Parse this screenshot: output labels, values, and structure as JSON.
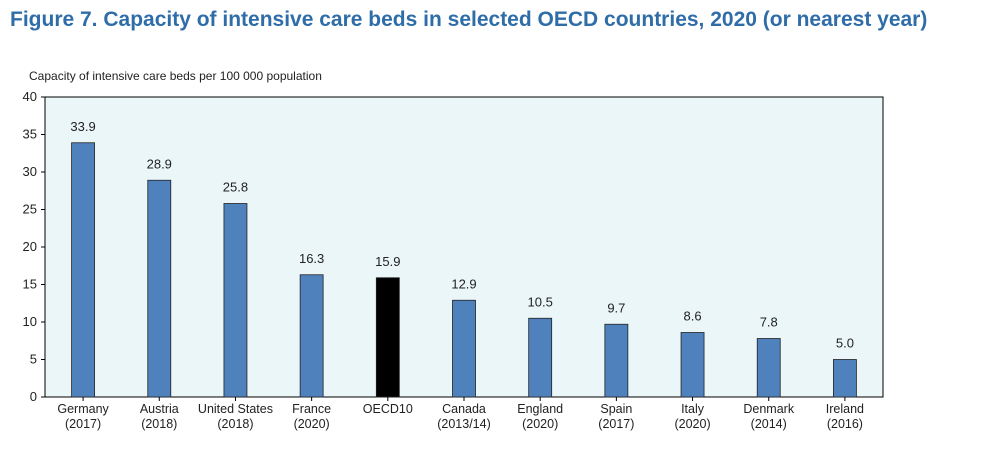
{
  "title": "Figure 7. Capacity of intensive care beds in selected OECD countries, 2020 (or nearest year)",
  "colors": {
    "title": "#2f6da8",
    "plot_background": "#eaf6f8",
    "bar": "#4f81bd",
    "highlight_bar": "#000000"
  },
  "chart_data": {
    "type": "bar",
    "ylabel": "Capacity of intensive care beds per 100 000 population",
    "xlabel": "",
    "ylim": [
      0,
      40
    ],
    "yticks": [
      0,
      5,
      10,
      15,
      20,
      25,
      30,
      35,
      40
    ],
    "grid": false,
    "categories": [
      {
        "name": "Germany",
        "year": "(2017)"
      },
      {
        "name": "Austria",
        "year": "(2018)"
      },
      {
        "name": "United States",
        "year": "(2018)"
      },
      {
        "name": "France",
        "year": "(2020)"
      },
      {
        "name": "OECD10",
        "year": ""
      },
      {
        "name": "Canada",
        "year": "(2013/14)"
      },
      {
        "name": "England",
        "year": "(2020)"
      },
      {
        "name": "Spain",
        "year": "(2017)"
      },
      {
        "name": "Italy",
        "year": "(2020)"
      },
      {
        "name": "Denmark",
        "year": "(2014)"
      },
      {
        "name": "Ireland",
        "year": "(2016)"
      }
    ],
    "values": [
      33.9,
      28.9,
      25.8,
      16.3,
      15.9,
      12.9,
      10.5,
      9.7,
      8.6,
      7.8,
      5.0
    ],
    "data_labels": [
      "33.9",
      "28.9",
      "25.8",
      "16.3",
      "15.9",
      "12.9",
      "10.5",
      "9.7",
      "8.6",
      "7.8",
      "5.0"
    ],
    "highlight": "OECD10"
  }
}
